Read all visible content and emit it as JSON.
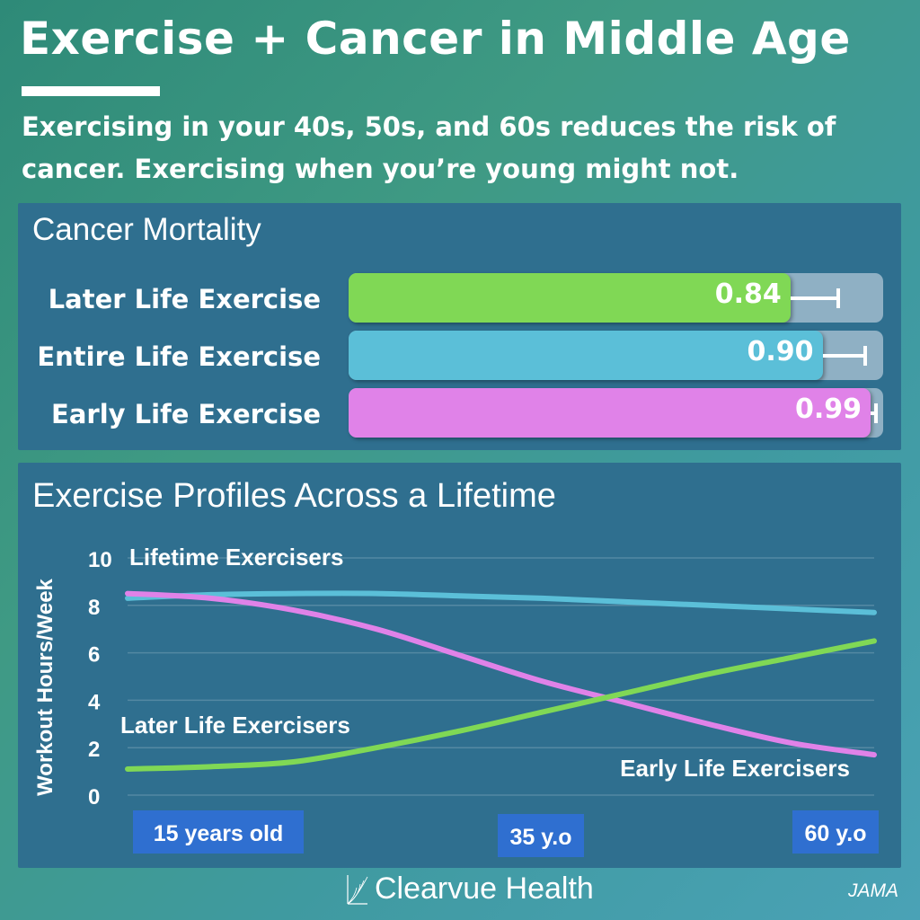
{
  "header": {
    "title": "Exercise + Cancer in Middle Age",
    "subtitle": "Exercising in your 40s, 50s, and 60s reduces the risk of cancer. Exercising when you’re young might not."
  },
  "colors": {
    "green": "#80d855",
    "blue": "#5bbfd8",
    "pink": "#e082e8",
    "panel": "#2f6f8f"
  },
  "footer": {
    "brand": "Clearvue Health",
    "source": "JAMA"
  },
  "chart_data": [
    {
      "type": "bar",
      "title": "Cancer Mortality",
      "orientation": "horizontal",
      "categories": [
        "Later Life Exercise",
        "Entire Life Exercise",
        "Early Life Exercise"
      ],
      "values": [
        0.84,
        0.9,
        0.99
      ],
      "labels": [
        "0.84",
        "0.90",
        "0.99"
      ],
      "error_upper": [
        0.93,
        0.98,
        1.0
      ],
      "xlim": [
        0,
        1
      ],
      "colors": [
        "#80d855",
        "#5bbfd8",
        "#e082e8"
      ]
    },
    {
      "type": "line",
      "title": "Exercise Profiles Across a Lifetime",
      "ylabel": "Workout Hours/Week",
      "xlabel": "",
      "ylim": [
        0,
        10
      ],
      "yticks": [
        0,
        2,
        4,
        6,
        8,
        10
      ],
      "xlim": [
        15,
        60
      ],
      "x_ticks": [
        {
          "x": 15,
          "label": "15 years old"
        },
        {
          "x": 35,
          "label": "35 y.o"
        },
        {
          "x": 60,
          "label": "60 y.o"
        }
      ],
      "grid": true,
      "series": [
        {
          "name": "Lifetime Exercisers",
          "color": "#5bbfd8",
          "x": [
            15,
            20,
            25,
            30,
            35,
            40,
            45,
            50,
            55,
            60
          ],
          "y": [
            8.3,
            8.45,
            8.5,
            8.5,
            8.4,
            8.3,
            8.15,
            8.0,
            7.85,
            7.7
          ]
        },
        {
          "name": "Later Life Exercisers",
          "color": "#80d855",
          "x": [
            15,
            20,
            25,
            30,
            35,
            40,
            45,
            50,
            55,
            60
          ],
          "y": [
            1.1,
            1.2,
            1.4,
            2.0,
            2.7,
            3.5,
            4.3,
            5.1,
            5.8,
            6.5
          ]
        },
        {
          "name": "Early Life Exercisers",
          "color": "#e082e8",
          "x": [
            15,
            20,
            25,
            30,
            35,
            40,
            45,
            50,
            55,
            60
          ],
          "y": [
            8.5,
            8.3,
            7.8,
            7.0,
            5.9,
            4.8,
            3.9,
            3.0,
            2.2,
            1.7
          ]
        }
      ]
    }
  ]
}
